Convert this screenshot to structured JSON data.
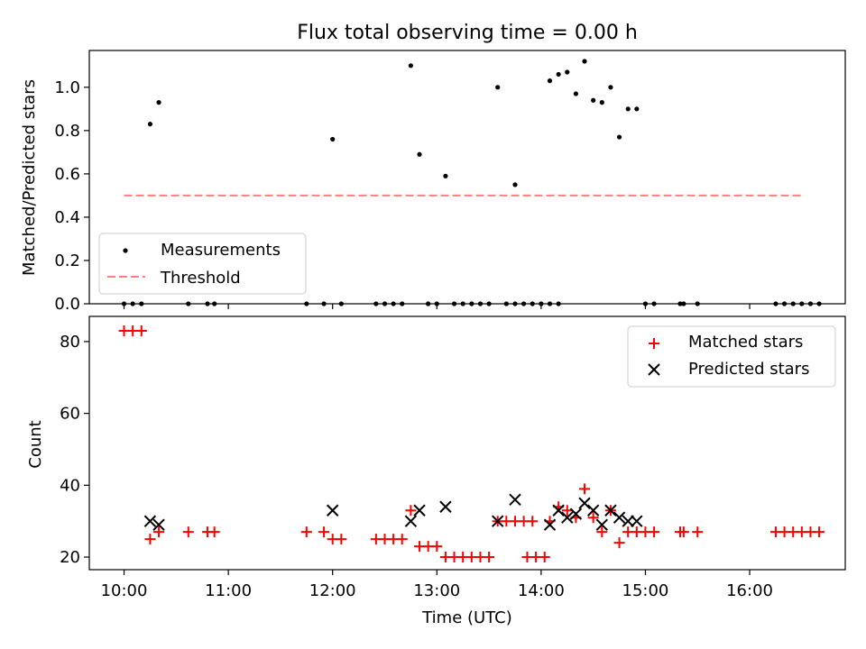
{
  "chart_data": [
    {
      "type": "scatter",
      "title": "Flux total observing time = 0.00 h",
      "xlabel": "",
      "ylabel": "Matched/Predicted stars",
      "xlim": [
        "09:40",
        "16:55"
      ],
      "ylim": [
        0,
        1.17
      ],
      "yticks": [
        "0.0",
        "0.2",
        "0.4",
        "0.6",
        "0.8",
        "1.0"
      ],
      "grid": false,
      "legend_position": "lower-left",
      "series": [
        {
          "name": "Measurements",
          "marker": "dot",
          "color": "#000000",
          "points": [
            [
              "10:00",
              0.0
            ],
            [
              "10:05",
              0.0
            ],
            [
              "10:10",
              0.0
            ],
            [
              "10:15",
              0.83
            ],
            [
              "10:20",
              0.93
            ],
            [
              "10:37",
              0.0
            ],
            [
              "10:48",
              0.0
            ],
            [
              "10:52",
              0.0
            ],
            [
              "11:45",
              0.0
            ],
            [
              "11:55",
              0.0
            ],
            [
              "12:00",
              0.76
            ],
            [
              "12:05",
              0.0
            ],
            [
              "12:25",
              0.0
            ],
            [
              "12:30",
              0.0
            ],
            [
              "12:35",
              0.0
            ],
            [
              "12:40",
              0.0
            ],
            [
              "12:45",
              1.1
            ],
            [
              "12:50",
              0.69
            ],
            [
              "12:55",
              0.0
            ],
            [
              "13:00",
              0.0
            ],
            [
              "13:05",
              0.59
            ],
            [
              "13:10",
              0.0
            ],
            [
              "13:15",
              0.0
            ],
            [
              "13:20",
              0.0
            ],
            [
              "13:25",
              0.0
            ],
            [
              "13:30",
              0.0
            ],
            [
              "13:35",
              1.0
            ],
            [
              "13:40",
              0.0
            ],
            [
              "13:45",
              0.0
            ],
            [
              "13:50",
              0.0
            ],
            [
              "13:55",
              0.0
            ],
            [
              "14:00",
              0.0
            ],
            [
              "13:45",
              0.55
            ],
            [
              "14:05",
              0.0
            ],
            [
              "14:10",
              0.0
            ],
            [
              "14:05",
              1.03
            ],
            [
              "14:10",
              1.06
            ],
            [
              "14:15",
              1.07
            ],
            [
              "14:20",
              0.97
            ],
            [
              "14:25",
              1.12
            ],
            [
              "14:30",
              0.94
            ],
            [
              "14:35",
              0.93
            ],
            [
              "14:40",
              1.0
            ],
            [
              "14:45",
              0.77
            ],
            [
              "14:50",
              0.9
            ],
            [
              "14:55",
              0.9
            ],
            [
              "15:00",
              0.0
            ],
            [
              "15:05",
              0.0
            ],
            [
              "15:20",
              0.0
            ],
            [
              "15:22",
              0.0
            ],
            [
              "15:30",
              0.0
            ],
            [
              "16:15",
              0.0
            ],
            [
              "16:20",
              0.0
            ],
            [
              "16:25",
              0.0
            ],
            [
              "16:30",
              0.0
            ],
            [
              "16:35",
              0.0
            ],
            [
              "16:40",
              0.0
            ]
          ]
        },
        {
          "name": "Threshold",
          "marker": "dashed-line",
          "color": "#ff7f7f",
          "points": [
            [
              "10:00",
              0.5
            ],
            [
              "16:30",
              0.5
            ]
          ]
        }
      ]
    },
    {
      "type": "scatter",
      "title": "",
      "xlabel": "Time (UTC)",
      "ylabel": "Count",
      "xlim": [
        "09:40",
        "16:55"
      ],
      "ylim": [
        16.5,
        87
      ],
      "xticks": [
        "10:00",
        "11:00",
        "12:00",
        "13:00",
        "14:00",
        "15:00",
        "16:00"
      ],
      "yticks": [
        "20",
        "40",
        "60",
        "80"
      ],
      "grid": false,
      "legend_position": "top-right",
      "series": [
        {
          "name": "Matched stars",
          "marker": "plus",
          "color": "#ff0000",
          "points": [
            [
              "10:00",
              83
            ],
            [
              "10:05",
              83
            ],
            [
              "10:10",
              83
            ],
            [
              "10:15",
              25
            ],
            [
              "10:20",
              27
            ],
            [
              "10:37",
              27
            ],
            [
              "10:48",
              27
            ],
            [
              "10:52",
              27
            ],
            [
              "11:45",
              27
            ],
            [
              "11:55",
              27
            ],
            [
              "12:00",
              25
            ],
            [
              "12:05",
              25
            ],
            [
              "12:25",
              25
            ],
            [
              "12:30",
              25
            ],
            [
              "12:35",
              25
            ],
            [
              "12:40",
              25
            ],
            [
              "12:45",
              33
            ],
            [
              "12:50",
              23
            ],
            [
              "12:55",
              23
            ],
            [
              "13:00",
              23
            ],
            [
              "13:05",
              20
            ],
            [
              "13:10",
              20
            ],
            [
              "13:15",
              20
            ],
            [
              "13:20",
              20
            ],
            [
              "13:25",
              20
            ],
            [
              "13:30",
              20
            ],
            [
              "13:35",
              30
            ],
            [
              "13:40",
              30
            ],
            [
              "13:45",
              30
            ],
            [
              "13:50",
              30
            ],
            [
              "13:55",
              30
            ],
            [
              "13:52",
              20
            ],
            [
              "13:57",
              20
            ],
            [
              "14:02",
              20
            ],
            [
              "14:05",
              30
            ],
            [
              "14:10",
              34
            ],
            [
              "14:15",
              33
            ],
            [
              "14:20",
              31
            ],
            [
              "14:25",
              39
            ],
            [
              "14:30",
              31
            ],
            [
              "14:35",
              27
            ],
            [
              "14:40",
              33
            ],
            [
              "14:45",
              24
            ],
            [
              "14:50",
              27
            ],
            [
              "14:55",
              27
            ],
            [
              "15:00",
              27
            ],
            [
              "15:05",
              27
            ],
            [
              "15:20",
              27
            ],
            [
              "15:22",
              27
            ],
            [
              "15:30",
              27
            ],
            [
              "16:15",
              27
            ],
            [
              "16:20",
              27
            ],
            [
              "16:25",
              27
            ],
            [
              "16:30",
              27
            ],
            [
              "16:35",
              27
            ],
            [
              "16:40",
              27
            ]
          ]
        },
        {
          "name": "Predicted stars",
          "marker": "x",
          "color": "#000000",
          "points": [
            [
              "10:15",
              30
            ],
            [
              "10:20",
              29
            ],
            [
              "12:00",
              33
            ],
            [
              "12:45",
              30
            ],
            [
              "12:50",
              33
            ],
            [
              "13:05",
              34
            ],
            [
              "13:35",
              30
            ],
            [
              "13:45",
              36
            ],
            [
              "14:05",
              29
            ],
            [
              "14:10",
              33
            ],
            [
              "14:15",
              31
            ],
            [
              "14:20",
              32
            ],
            [
              "14:25",
              35
            ],
            [
              "14:30",
              33
            ],
            [
              "14:35",
              29
            ],
            [
              "14:40",
              33
            ],
            [
              "14:45",
              31
            ],
            [
              "14:50",
              30
            ],
            [
              "14:55",
              30
            ]
          ]
        }
      ]
    }
  ]
}
